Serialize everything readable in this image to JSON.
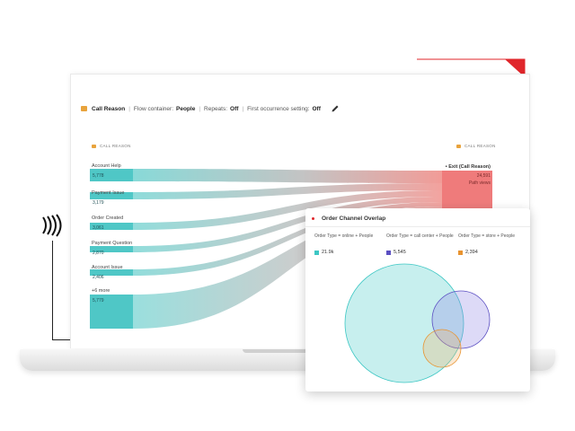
{
  "filter_bar": {
    "dimension": "Call Reason",
    "flow_container_label": "Flow container:",
    "flow_container_value": "People",
    "repeats_label": "Repeats:",
    "repeats_value": "Off",
    "first_occurrence_label": "First occurrence setting:",
    "first_occurrence_value": "Off"
  },
  "flow": {
    "left_dimension": "CALL REASON",
    "right_dimension": "CALL REASON",
    "exit_label": "Exit (Call Reason)",
    "exit_value": "24,591",
    "exit_sub": "Path views",
    "nodes": [
      {
        "label": "Account Help",
        "value": "5,778"
      },
      {
        "label": "Payment Issue",
        "value": "3,179"
      },
      {
        "label": "Order Created",
        "value": "3,061"
      },
      {
        "label": "Payment Question",
        "value": "2,870"
      },
      {
        "label": "Account Issue",
        "value": "2,406"
      },
      {
        "label": "+6 more",
        "value": "5,779"
      }
    ]
  },
  "overlap": {
    "title": "Order Channel Overlap",
    "segments": [
      {
        "label": "Order Type = online + People",
        "value": "21.9k",
        "color": "#3dc7c4"
      },
      {
        "label": "Order Type = call center + People",
        "value": "5,545",
        "color": "#5b4fc2"
      },
      {
        "label": "Order Type = store + People",
        "value": "2,394",
        "color": "#e8932f"
      }
    ]
  },
  "colors": {
    "accent_red": "#e0262b",
    "teal": "#5fd0cf",
    "exit_red": "#ef7b7b"
  },
  "icons": {
    "dimension": "tag-icon",
    "edit": "pencil-icon",
    "signal": "wave-icon"
  }
}
